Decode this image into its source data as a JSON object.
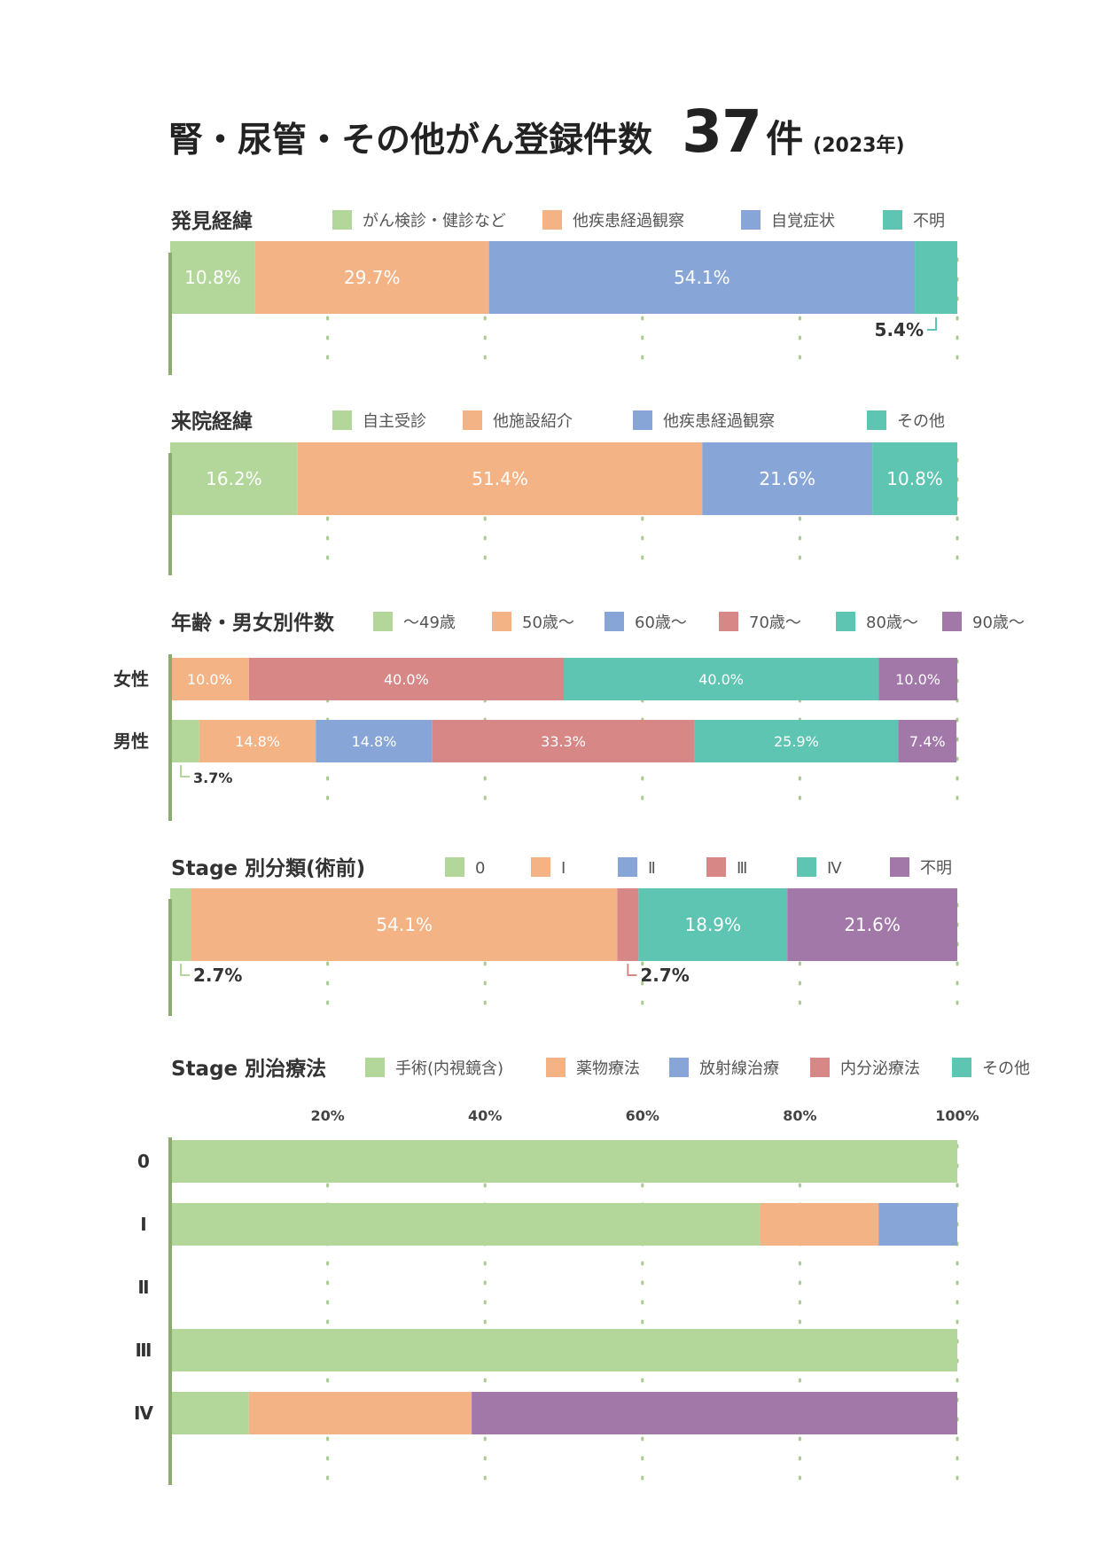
{
  "title": {
    "main": "腎・尿管・その他がん登録件数",
    "count": "37",
    "unit": "件",
    "year": "(2023年)"
  },
  "colors": {
    "green": "#b3d69b",
    "orange": "#f4b385",
    "blue": "#87a5d6",
    "red": "#d68786",
    "teal": "#5fc5b3",
    "purple": "#a278a9",
    "axis": "#8aad6e",
    "grid": "#a9c98e"
  },
  "chart_data": [
    {
      "id": "discovery",
      "type": "bar",
      "stacked": "100%",
      "title": "発見経緯",
      "legend_placement": "top",
      "categories": [
        ""
      ],
      "series": [
        {
          "name": "がん検診・健診など",
          "color": "green",
          "values": [
            10.8
          ],
          "label": "10.8%"
        },
        {
          "name": "他疾患経過観察",
          "color": "orange",
          "values": [
            29.7
          ],
          "label": "29.7%"
        },
        {
          "name": "自覚症状",
          "color": "blue",
          "values": [
            54.1
          ],
          "label": "54.1%"
        },
        {
          "name": "不明",
          "color": "teal",
          "values": [
            5.4
          ],
          "label": "5.4%",
          "label_outside": true
        }
      ]
    },
    {
      "id": "visit",
      "type": "bar",
      "stacked": "100%",
      "title": "来院経緯",
      "legend_placement": "top",
      "categories": [
        ""
      ],
      "series": [
        {
          "name": "自主受診",
          "color": "green",
          "values": [
            16.2
          ],
          "label": "16.2%"
        },
        {
          "name": "他施設紹介",
          "color": "orange",
          "values": [
            51.4
          ],
          "label": "51.4%"
        },
        {
          "name": "他疾患経過観察",
          "color": "blue",
          "values": [
            21.6
          ],
          "label": "21.6%"
        },
        {
          "name": "その他",
          "color": "teal",
          "values": [
            10.8
          ],
          "label": "10.8%"
        }
      ]
    },
    {
      "id": "age",
      "type": "bar",
      "stacked": "100%",
      "title": "年齢・男女別件数",
      "legend_placement": "top",
      "categories": [
        "女性",
        "男性"
      ],
      "series": [
        {
          "name": "〜49歳",
          "color": "green",
          "values": [
            0,
            3.7
          ],
          "labels": [
            "",
            "3.7%"
          ],
          "outside": [
            false,
            true
          ]
        },
        {
          "name": "50歳〜",
          "color": "orange",
          "values": [
            10.0,
            14.8
          ],
          "labels": [
            "10.0%",
            "14.8%"
          ]
        },
        {
          "name": "60歳〜",
          "color": "blue",
          "values": [
            0,
            14.8
          ],
          "labels": [
            "",
            "14.8%"
          ]
        },
        {
          "name": "70歳〜",
          "color": "red",
          "values": [
            40.0,
            33.3
          ],
          "labels": [
            "40.0%",
            "33.3%"
          ]
        },
        {
          "name": "80歳〜",
          "color": "teal",
          "values": [
            40.0,
            25.9
          ],
          "labels": [
            "40.0%",
            "25.9%"
          ]
        },
        {
          "name": "90歳〜",
          "color": "purple",
          "values": [
            10.0,
            7.4
          ],
          "labels": [
            "10.0%",
            "7.4%"
          ]
        }
      ]
    },
    {
      "id": "stage",
      "type": "bar",
      "stacked": "100%",
      "title": "Stage 別分類(術前)",
      "legend_placement": "top",
      "categories": [
        ""
      ],
      "series": [
        {
          "name": "0",
          "color": "green",
          "values": [
            2.7
          ],
          "label": "2.7%",
          "label_outside": true
        },
        {
          "name": "Ⅰ",
          "color": "orange",
          "values": [
            54.1
          ],
          "label": "54.1%"
        },
        {
          "name": "Ⅱ",
          "color": "blue",
          "values": [
            0
          ],
          "label": ""
        },
        {
          "name": "Ⅲ",
          "color": "red",
          "values": [
            2.7
          ],
          "label": "2.7%",
          "label_outside": true
        },
        {
          "name": "Ⅳ",
          "color": "teal",
          "values": [
            18.9
          ],
          "label": "18.9%"
        },
        {
          "name": "不明",
          "color": "purple",
          "values": [
            21.6
          ],
          "label": "21.6%"
        }
      ]
    },
    {
      "id": "treatment",
      "type": "bar",
      "stacked": "100%",
      "title": "Stage 別治療法",
      "legend_placement": "top",
      "categories": [
        "0",
        "Ⅰ",
        "Ⅱ",
        "Ⅲ",
        "Ⅳ"
      ],
      "xlim": [
        0,
        100
      ],
      "xticks": [
        "20%",
        "40%",
        "60%",
        "80%",
        "100%"
      ],
      "legend": [
        {
          "name": "手術(内視鏡含)",
          "color": "green"
        },
        {
          "name": "薬物療法",
          "color": "orange"
        },
        {
          "name": "放射線治療",
          "color": "blue"
        },
        {
          "name": "内分泌療法",
          "color": "red"
        },
        {
          "name": "その他",
          "color": "teal"
        }
      ],
      "rows": [
        [
          {
            "color": "green",
            "value": 100
          }
        ],
        [
          {
            "color": "green",
            "value": 75
          },
          {
            "color": "orange",
            "value": 15
          },
          {
            "color": "blue",
            "value": 10
          }
        ],
        [],
        [
          {
            "color": "green",
            "value": 100
          }
        ],
        [
          {
            "color": "green",
            "value": 10
          },
          {
            "color": "orange",
            "value": 28.3
          },
          {
            "color": "purple",
            "value": 61.7
          }
        ]
      ]
    }
  ]
}
